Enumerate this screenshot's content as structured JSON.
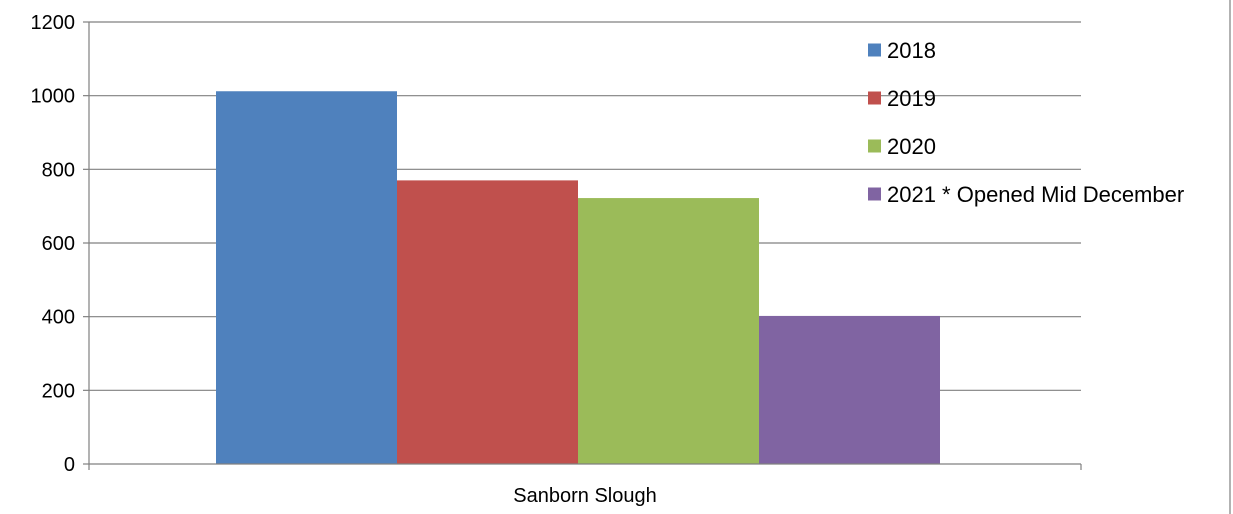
{
  "chart_data": {
    "type": "bar",
    "title": "",
    "xlabel": "",
    "ylabel": "",
    "categories": [
      "Sanborn Slough"
    ],
    "series": [
      {
        "name": "2018",
        "values": [
          1012
        ],
        "color": "#4F81BD"
      },
      {
        "name": "2019",
        "values": [
          770
        ],
        "color": "#C0504D"
      },
      {
        "name": "2020",
        "values": [
          722
        ],
        "color": "#9BBB59"
      },
      {
        "name": "2021 * Opened Mid December",
        "values": [
          402
        ],
        "color": "#8064A2"
      }
    ],
    "ylim": [
      0,
      1200
    ],
    "yticks": [
      "0",
      "200",
      "400",
      "600",
      "800",
      "1000",
      "1200"
    ],
    "grid": true,
    "legend_position": "right"
  }
}
